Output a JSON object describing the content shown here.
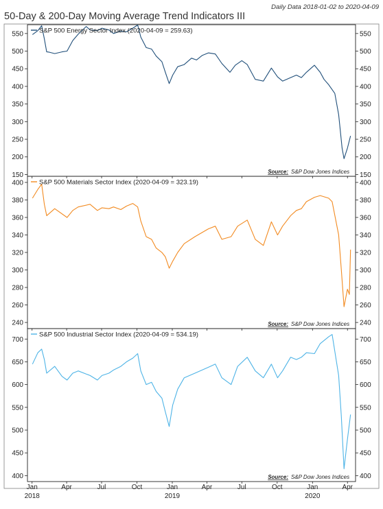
{
  "header": {
    "title": "50-Day & 200-Day Moving Average Trend Indicators III",
    "subtitle": "Daily Data 2018-01-02 to 2020-04-09"
  },
  "source_label": "Source:",
  "source_name": "S&P Dow Jones Indices",
  "x_axis": {
    "ticks": [
      {
        "date": "2018-01-01",
        "label": "Jan"
      },
      {
        "date": "2018-04-01",
        "label": "Apr"
      },
      {
        "date": "2018-07-01",
        "label": "Jul"
      },
      {
        "date": "2018-10-01",
        "label": "Oct"
      },
      {
        "date": "2019-01-01",
        "label": "Jan"
      },
      {
        "date": "2019-04-01",
        "label": "Apr"
      },
      {
        "date": "2019-07-01",
        "label": "Jul"
      },
      {
        "date": "2019-10-01",
        "label": "Oct"
      },
      {
        "date": "2020-01-01",
        "label": "Jan"
      },
      {
        "date": "2020-04-01",
        "label": "Apr"
      }
    ],
    "years": [
      {
        "date": "2018-01-01",
        "label": "2018"
      },
      {
        "date": "2019-01-01",
        "label": "2019"
      },
      {
        "date": "2020-01-01",
        "label": "2020"
      }
    ],
    "range": [
      "2017-12-20",
      "2020-04-22"
    ]
  },
  "chart_data": [
    {
      "type": "line",
      "legend": "S&P 500 Energy Sector Index (2020-04-09 = 259.63)",
      "color": "#1f4e79",
      "ylim": [
        145,
        575
      ],
      "yticks": [
        150,
        200,
        250,
        300,
        350,
        400,
        450,
        500,
        550
      ],
      "series": [
        {
          "x": [
            "2018-01-02",
            "2018-01-16",
            "2018-01-26",
            "2018-02-02",
            "2018-02-08",
            "2018-02-15",
            "2018-03-01",
            "2018-03-20",
            "2018-04-02",
            "2018-04-17",
            "2018-05-01",
            "2018-05-22",
            "2018-06-01",
            "2018-06-20",
            "2018-07-02",
            "2018-07-20",
            "2018-08-01",
            "2018-08-20",
            "2018-09-04",
            "2018-09-20",
            "2018-10-03",
            "2018-10-11",
            "2018-10-25",
            "2018-11-08",
            "2018-11-20",
            "2018-12-05",
            "2018-12-14",
            "2018-12-24",
            "2019-01-02",
            "2019-01-15",
            "2019-02-01",
            "2019-02-20",
            "2019-03-05",
            "2019-03-20",
            "2019-04-05",
            "2019-04-23",
            "2019-05-10",
            "2019-05-31",
            "2019-06-14",
            "2019-07-01",
            "2019-07-15",
            "2019-08-05",
            "2019-08-26",
            "2019-09-16",
            "2019-10-02",
            "2019-10-15",
            "2019-11-05",
            "2019-11-20",
            "2019-12-03",
            "2019-12-16",
            "2020-01-06",
            "2020-01-21",
            "2020-01-31",
            "2020-02-12",
            "2020-02-28",
            "2020-03-09",
            "2020-03-18",
            "2020-03-23",
            "2020-04-01",
            "2020-04-09"
          ],
          "values": [
            547,
            558,
            572,
            535,
            498,
            497,
            493,
            498,
            500,
            530,
            548,
            570,
            560,
            558,
            565,
            560,
            550,
            557,
            555,
            565,
            574,
            540,
            510,
            506,
            486,
            470,
            440,
            408,
            432,
            456,
            462,
            480,
            475,
            488,
            495,
            492,
            465,
            440,
            460,
            473,
            462,
            420,
            415,
            452,
            427,
            415,
            425,
            432,
            425,
            440,
            460,
            440,
            420,
            405,
            380,
            320,
            225,
            195,
            225,
            259.63
          ]
        }
      ]
    },
    {
      "type": "line",
      "legend": "S&P 500 Materials Sector Index (2020-04-09 = 323.19)",
      "color": "#f28a20",
      "ylim": [
        233,
        407
      ],
      "yticks": [
        240,
        260,
        280,
        300,
        320,
        340,
        360,
        380,
        400
      ],
      "series": [
        {
          "x": [
            "2018-01-02",
            "2018-01-16",
            "2018-01-26",
            "2018-02-02",
            "2018-02-08",
            "2018-03-01",
            "2018-04-02",
            "2018-04-17",
            "2018-05-01",
            "2018-06-01",
            "2018-06-20",
            "2018-07-02",
            "2018-07-20",
            "2018-08-01",
            "2018-08-20",
            "2018-09-04",
            "2018-09-20",
            "2018-10-03",
            "2018-10-11",
            "2018-10-25",
            "2018-11-08",
            "2018-11-20",
            "2018-12-05",
            "2018-12-14",
            "2018-12-24",
            "2019-01-02",
            "2019-01-15",
            "2019-02-01",
            "2019-03-01",
            "2019-04-05",
            "2019-04-23",
            "2019-05-10",
            "2019-06-03",
            "2019-06-20",
            "2019-07-15",
            "2019-08-05",
            "2019-08-26",
            "2019-09-16",
            "2019-10-02",
            "2019-10-15",
            "2019-11-05",
            "2019-11-20",
            "2019-12-03",
            "2019-12-16",
            "2020-01-06",
            "2020-01-21",
            "2020-02-12",
            "2020-02-21",
            "2020-03-09",
            "2020-03-16",
            "2020-03-23",
            "2020-04-01",
            "2020-04-06",
            "2020-04-09"
          ],
          "values": [
            382,
            392,
            398,
            375,
            362,
            370,
            360,
            368,
            372,
            375,
            368,
            371,
            370,
            372,
            369,
            373,
            376,
            372,
            356,
            338,
            335,
            325,
            320,
            315,
            302,
            310,
            320,
            330,
            338,
            347,
            350,
            335,
            338,
            350,
            357,
            335,
            328,
            355,
            340,
            350,
            362,
            368,
            370,
            378,
            383,
            385,
            382,
            378,
            340,
            300,
            258,
            278,
            272,
            323.19
          ]
        }
      ]
    },
    {
      "type": "line",
      "legend": "S&P 500 Industrial Sector Index (2020-04-09 = 534.19)",
      "color": "#4db3e6",
      "ylim": [
        387,
        723
      ],
      "yticks": [
        400,
        450,
        500,
        550,
        600,
        650,
        700
      ],
      "series": [
        {
          "x": [
            "2018-01-02",
            "2018-01-16",
            "2018-01-26",
            "2018-02-02",
            "2018-02-08",
            "2018-03-01",
            "2018-03-20",
            "2018-04-02",
            "2018-04-17",
            "2018-05-01",
            "2018-06-01",
            "2018-06-20",
            "2018-07-02",
            "2018-07-20",
            "2018-08-01",
            "2018-08-20",
            "2018-09-04",
            "2018-09-20",
            "2018-10-03",
            "2018-10-11",
            "2018-10-25",
            "2018-11-08",
            "2018-11-20",
            "2018-12-05",
            "2018-12-14",
            "2018-12-24",
            "2019-01-02",
            "2019-01-15",
            "2019-02-01",
            "2019-03-01",
            "2019-04-05",
            "2019-04-23",
            "2019-05-10",
            "2019-06-03",
            "2019-06-20",
            "2019-07-15",
            "2019-08-05",
            "2019-08-26",
            "2019-09-16",
            "2019-10-02",
            "2019-10-15",
            "2019-11-05",
            "2019-11-20",
            "2019-12-03",
            "2019-12-16",
            "2020-01-06",
            "2020-01-21",
            "2020-02-12",
            "2020-02-21",
            "2020-03-09",
            "2020-03-16",
            "2020-03-23",
            "2020-04-01",
            "2020-04-09"
          ],
          "values": [
            645,
            670,
            678,
            655,
            625,
            640,
            618,
            610,
            625,
            630,
            620,
            610,
            620,
            625,
            632,
            640,
            650,
            658,
            668,
            630,
            600,
            605,
            585,
            570,
            540,
            508,
            555,
            590,
            615,
            625,
            638,
            645,
            615,
            600,
            640,
            660,
            630,
            615,
            645,
            615,
            630,
            660,
            655,
            660,
            670,
            668,
            690,
            705,
            710,
            620,
            530,
            415,
            480,
            534.19
          ]
        }
      ]
    }
  ]
}
